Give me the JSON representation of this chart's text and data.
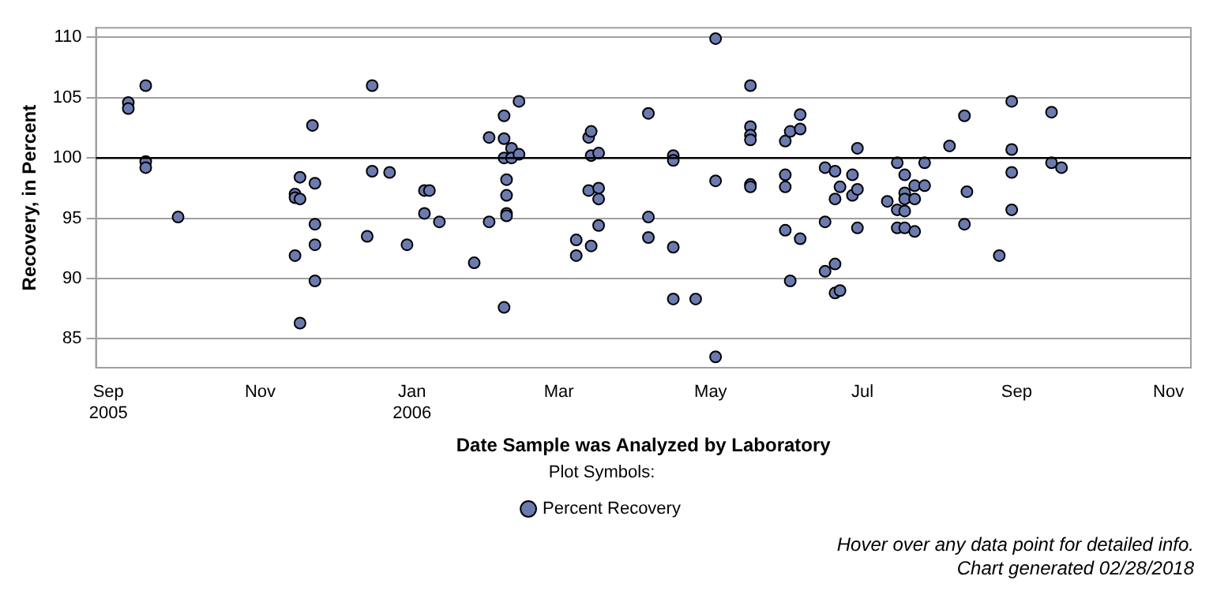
{
  "chart_data": {
    "type": "scatter",
    "xlabel": "Date Sample was Analyzed by Laboratory",
    "ylabel": "Recovery, in Percent",
    "legend_title": "Plot Symbols:",
    "legend": "bottom",
    "grid": "y",
    "marker": "circle",
    "xlim": [
      "2005-08-27",
      "2006-11-10"
    ],
    "xticks": [
      {
        "value": "2005-09-01",
        "label": "Sep 2005"
      },
      {
        "value": "2005-11-01",
        "label": "Nov"
      },
      {
        "value": "2006-01-01",
        "label": "Jan 2006"
      },
      {
        "value": "2006-03-01",
        "label": "Mar"
      },
      {
        "value": "2006-05-01",
        "label": "May"
      },
      {
        "value": "2006-07-01",
        "label": "Jul"
      },
      {
        "value": "2006-09-01",
        "label": "Sep"
      },
      {
        "value": "2006-11-01",
        "label": "Nov"
      }
    ],
    "ylim": [
      82.6,
      110.8
    ],
    "yticks": [
      85,
      90,
      95,
      100,
      105,
      110
    ],
    "ref_lines": [
      {
        "axis": "y",
        "value": 100,
        "color": "#000000"
      }
    ],
    "annotations": [
      "Hover over any data point for detailed info.",
      "Chart generated 02/28/2018"
    ],
    "series": [
      {
        "name": "Percent Recovery",
        "color": "#6b7bb0",
        "x": [
          "2005-09-09",
          "2005-09-09",
          "2005-09-16",
          "2005-09-16",
          "2005-09-16",
          "2005-09-29",
          "2005-11-22",
          "2005-11-17",
          "2005-11-23",
          "2005-11-15",
          "2005-11-15",
          "2005-11-17",
          "2005-11-23",
          "2005-11-23",
          "2005-11-15",
          "2005-11-23",
          "2005-11-17",
          "2005-12-16",
          "2005-12-16",
          "2005-12-23",
          "2005-12-14",
          "2005-12-30",
          "2006-01-06",
          "2006-01-08",
          "2006-01-06",
          "2006-01-12",
          "2006-01-26",
          "2006-02-01",
          "2006-02-01",
          "2006-02-07",
          "2006-02-07",
          "2006-02-10",
          "2006-02-07",
          "2006-02-10",
          "2006-02-13",
          "2006-02-13",
          "2006-02-08",
          "2006-02-08",
          "2006-02-08",
          "2006-02-08",
          "2006-02-07",
          "2006-03-08",
          "2006-03-08",
          "2006-03-14",
          "2006-03-13",
          "2006-03-14",
          "2006-03-14",
          "2006-03-17",
          "2006-03-13",
          "2006-03-17",
          "2006-03-17",
          "2006-03-17",
          "2006-04-06",
          "2006-04-06",
          "2006-04-06",
          "2006-04-16",
          "2006-04-16",
          "2006-04-16",
          "2006-04-16",
          "2006-04-25",
          "2006-05-03",
          "2006-05-03",
          "2006-05-03",
          "2006-05-17",
          "2006-05-17",
          "2006-05-17",
          "2006-05-17",
          "2006-05-17",
          "2006-05-17",
          "2006-05-31",
          "2006-06-02",
          "2006-06-06",
          "2006-06-06",
          "2006-05-31",
          "2006-05-31",
          "2006-05-31",
          "2006-06-06",
          "2006-06-02",
          "2006-06-16",
          "2006-06-20",
          "2006-06-16",
          "2006-06-16",
          "2006-06-20",
          "2006-06-20",
          "2006-06-20",
          "2006-06-22",
          "2006-06-22",
          "2006-06-27",
          "2006-06-27",
          "2006-06-29",
          "2006-06-29",
          "2006-06-29",
          "2006-07-11",
          "2006-07-15",
          "2006-07-15",
          "2006-07-15",
          "2006-07-18",
          "2006-07-18",
          "2006-07-18",
          "2006-07-18",
          "2006-07-18",
          "2006-07-22",
          "2006-07-22",
          "2006-07-22",
          "2006-07-26",
          "2006-07-26",
          "2006-08-05",
          "2006-08-11",
          "2006-08-12",
          "2006-08-11",
          "2006-08-25",
          "2006-08-30",
          "2006-08-30",
          "2006-08-30",
          "2006-08-30",
          "2006-09-15",
          "2006-09-15",
          "2006-09-19"
        ],
        "values": [
          104.6,
          104.1,
          106.0,
          99.7,
          99.2,
          95.1,
          102.7,
          98.4,
          97.9,
          97.0,
          96.7,
          96.6,
          94.5,
          92.8,
          91.9,
          89.8,
          86.3,
          106.0,
          98.9,
          98.8,
          93.5,
          92.8,
          97.3,
          97.3,
          95.4,
          94.7,
          91.3,
          101.7,
          94.7,
          103.5,
          101.6,
          100.8,
          100.0,
          100.0,
          104.7,
          100.3,
          98.2,
          96.9,
          95.4,
          95.2,
          87.6,
          93.2,
          91.9,
          92.7,
          101.7,
          102.2,
          100.2,
          100.4,
          97.3,
          97.5,
          96.6,
          94.4,
          103.7,
          95.1,
          93.4,
          100.2,
          99.8,
          92.6,
          88.3,
          88.3,
          109.9,
          98.1,
          83.5,
          106.0,
          102.6,
          101.9,
          101.5,
          97.8,
          97.6,
          101.4,
          102.2,
          102.4,
          103.6,
          98.6,
          97.6,
          94.0,
          93.3,
          89.8,
          99.2,
          98.9,
          94.7,
          90.6,
          88.8,
          96.6,
          91.2,
          97.6,
          89.0,
          98.6,
          96.9,
          97.4,
          100.8,
          94.2,
          96.4,
          99.6,
          95.7,
          94.2,
          98.6,
          97.1,
          96.6,
          95.6,
          94.2,
          97.7,
          96.6,
          93.9,
          99.6,
          97.7,
          101.0,
          103.5,
          97.2,
          94.5,
          91.9,
          104.7,
          100.7,
          98.8,
          95.7,
          103.8,
          99.6,
          99.2
        ]
      }
    ]
  }
}
